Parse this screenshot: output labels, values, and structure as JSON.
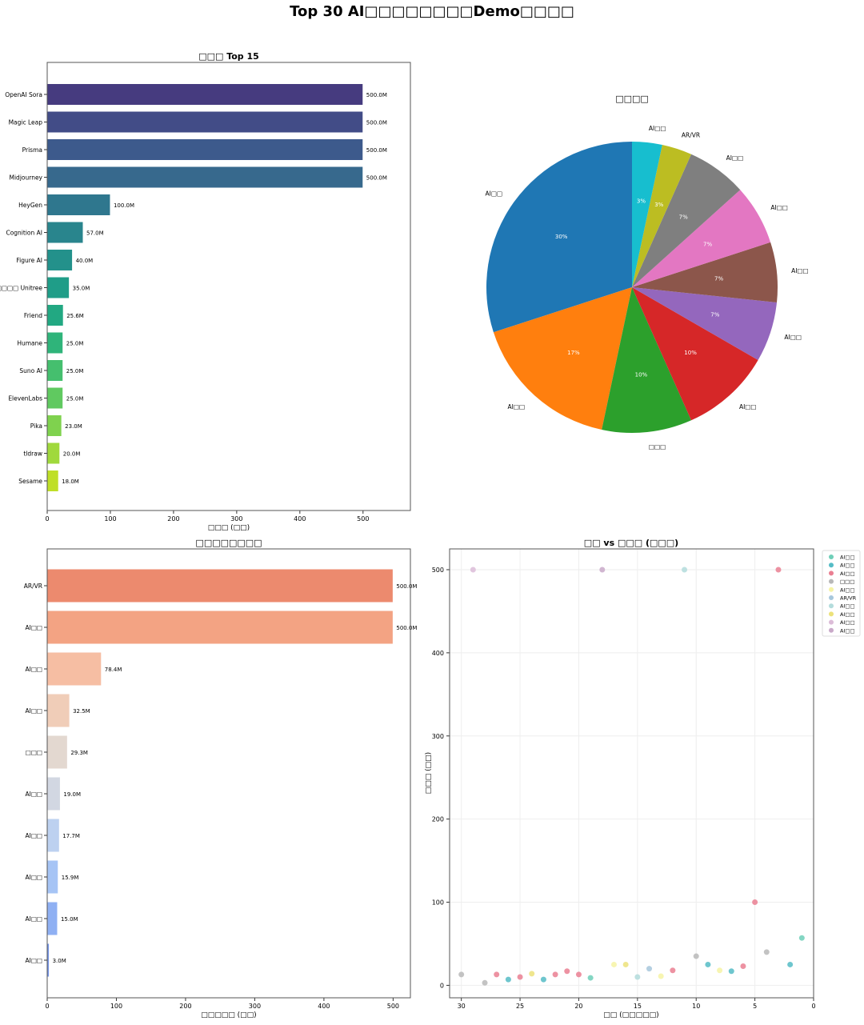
{
  "suptitle": "Top 30 AI□□□□□□□□Demo□□□□",
  "chart_data": [
    {
      "type": "bar",
      "orientation": "horizontal",
      "title": "□□□ Top 15",
      "xlabel": "□□□ (□□)",
      "ylabel": "",
      "xlim": [
        0,
        575
      ],
      "xticks": [
        0,
        100,
        200,
        300,
        400,
        500
      ],
      "categories": [
        "OpenAI Sora",
        "Magic Leap",
        "Prisma",
        "Midjourney",
        "HeyGen",
        "Cognition AI",
        "Figure AI",
        "□□□□ Unitree",
        "Friend",
        "Humane",
        "Suno AI",
        "ElevenLabs",
        "Pika",
        "tldraw",
        "Sesame"
      ],
      "values": [
        500,
        500,
        500,
        500,
        100,
        57,
        40,
        35,
        25.6,
        25,
        25,
        25,
        23,
        20,
        18
      ],
      "labels": [
        "500.0M",
        "500.0M",
        "500.0M",
        "500.0M",
        "100.0M",
        "57.0M",
        "40.0M",
        "35.0M",
        "25.6M",
        "25.0M",
        "25.0M",
        "25.0M",
        "23.0M",
        "20.0M",
        "18.0M"
      ],
      "colors": [
        "#463b7f",
        "#424c87",
        "#3d5a8c",
        "#37698d",
        "#2f778e",
        "#29858d",
        "#23918b",
        "#1f9d88",
        "#22a882",
        "#2fb47a",
        "#45bf6e",
        "#60c960",
        "#7fd24e",
        "#a0d93c",
        "#bfdf27"
      ]
    },
    {
      "type": "pie",
      "title": "□□□□",
      "labels": [
        "AI□□",
        "AI□□",
        "□□□",
        "AI□□",
        "AI□□",
        "AI□□",
        "AI□□",
        "AI□□",
        "AR/VR",
        "AI□□"
      ],
      "values": [
        9,
        5,
        3,
        3,
        2,
        2,
        2,
        2,
        1,
        1
      ],
      "pct_labels": [
        "30%",
        "17%",
        "10%",
        "10%",
        "7%",
        "7%",
        "7%",
        "7%",
        "3%",
        "3%"
      ],
      "colors": [
        "#1f77b4",
        "#ff7f0e",
        "#2ca02c",
        "#d62728",
        "#9467bd",
        "#8c564b",
        "#e377c2",
        "#7f7f7f",
        "#bcbd22",
        "#17becf"
      ],
      "start_angle": 90
    },
    {
      "type": "bar",
      "orientation": "horizontal",
      "title": "□□□□□□□□",
      "xlabel": "□□□□□ (□□)",
      "xlim": [
        0,
        525
      ],
      "xticks": [
        0,
        100,
        200,
        300,
        400,
        500
      ],
      "categories": [
        "AR/VR",
        "AI□□",
        "AI□□",
        "AI□□",
        "□□□",
        "AI□□",
        "AI□□",
        "AI□□",
        "AI□□",
        "AI□□"
      ],
      "values": [
        500,
        500,
        78.4,
        32.5,
        29.3,
        19.0,
        17.7,
        15.9,
        15.0,
        3.0
      ],
      "labels": [
        "500.0M",
        "500.0M",
        "78.4M",
        "32.5M",
        "29.3M",
        "19.0M",
        "17.7M",
        "15.9M",
        "15.0M",
        "3.0M"
      ],
      "colors": [
        "#ec8a6e",
        "#f3a383",
        "#f6bea3",
        "#f0cdb8",
        "#e3d8d0",
        "#d2d7e2",
        "#bdd1f0",
        "#a6c4f5",
        "#8fb0f3",
        "#7595e8"
      ]
    },
    {
      "type": "scatter",
      "title": "□□ vs □□□ (□□□)",
      "xlabel": "□□ (□□□□□)",
      "ylabel": "□□□ (□□)",
      "xlim": [
        31,
        0
      ],
      "ylim": [
        -15,
        525
      ],
      "xticks": [
        30,
        25,
        20,
        15,
        10,
        5,
        0
      ],
      "yticks": [
        0,
        100,
        200,
        300,
        400,
        500
      ],
      "grid": true,
      "legend_position": "outside-top-right",
      "legend": [
        {
          "label": "AI□□",
          "color": "#6fcfb8"
        },
        {
          "label": "AI□□",
          "color": "#55bcc6"
        },
        {
          "label": "AI□□",
          "color": "#ea7f92"
        },
        {
          "label": "□□□",
          "color": "#b8b8b8"
        },
        {
          "label": "AI□□",
          "color": "#f6f3a4"
        },
        {
          "label": "AR/VR",
          "color": "#a7c7dc"
        },
        {
          "label": "AI□□",
          "color": "#b3dcdc"
        },
        {
          "label": "AI□□",
          "color": "#ece27a"
        },
        {
          "label": "AI□□",
          "color": "#dcbcd8"
        },
        {
          "label": "AI□□",
          "color": "#c9a9c9"
        }
      ],
      "points": [
        {
          "x": 30,
          "y": 13,
          "c": 3
        },
        {
          "x": 29,
          "y": 500,
          "c": 8
        },
        {
          "x": 28,
          "y": 3,
          "c": 3
        },
        {
          "x": 27,
          "y": 13,
          "c": 2
        },
        {
          "x": 26,
          "y": 7,
          "c": 1
        },
        {
          "x": 25,
          "y": 10,
          "c": 2
        },
        {
          "x": 24,
          "y": 14,
          "c": 7
        },
        {
          "x": 23,
          "y": 7,
          "c": 1
        },
        {
          "x": 22,
          "y": 13,
          "c": 2
        },
        {
          "x": 21,
          "y": 17,
          "c": 2
        },
        {
          "x": 20,
          "y": 13,
          "c": 2
        },
        {
          "x": 19,
          "y": 9,
          "c": 0
        },
        {
          "x": 18,
          "y": 500,
          "c": 9
        },
        {
          "x": 17,
          "y": 25,
          "c": 4
        },
        {
          "x": 16,
          "y": 25,
          "c": 7
        },
        {
          "x": 15,
          "y": 10,
          "c": 6
        },
        {
          "x": 14,
          "y": 20,
          "c": 5
        },
        {
          "x": 13,
          "y": 11,
          "c": 4
        },
        {
          "x": 12,
          "y": 18,
          "c": 2
        },
        {
          "x": 11,
          "y": 500,
          "c": 6
        },
        {
          "x": 10,
          "y": 35,
          "c": 3
        },
        {
          "x": 9,
          "y": 25,
          "c": 1
        },
        {
          "x": 8,
          "y": 18,
          "c": 4
        },
        {
          "x": 7,
          "y": 17,
          "c": 1
        },
        {
          "x": 6,
          "y": 23,
          "c": 2
        },
        {
          "x": 5,
          "y": 100,
          "c": 2
        },
        {
          "x": 4,
          "y": 40,
          "c": 3
        },
        {
          "x": 3,
          "y": 500,
          "c": 2
        },
        {
          "x": 2,
          "y": 25,
          "c": 1
        },
        {
          "x": 1,
          "y": 57,
          "c": 0
        }
      ]
    }
  ]
}
